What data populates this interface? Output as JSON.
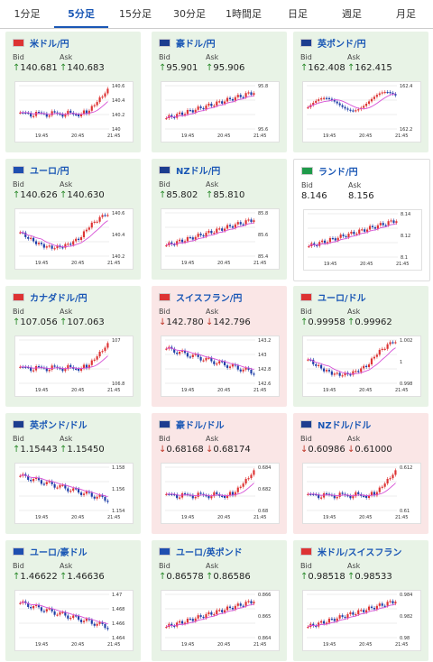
{
  "tabs": [
    {
      "label": "1分足"
    },
    {
      "label": "5分足"
    },
    {
      "label": "15分足"
    },
    {
      "label": "30分足"
    },
    {
      "label": "1時間足"
    },
    {
      "label": "日足"
    },
    {
      "label": "週足"
    },
    {
      "label": "月足"
    }
  ],
  "active_tab": 1,
  "flag_colors": {
    "us": "#d33",
    "au": "#1d3d8f",
    "gb": "#1d3d8f",
    "eu": "#1f4fb0",
    "nz": "#1d3d8f",
    "za": "#1f9a4a",
    "ca": "#d33",
    "ch": "#d33"
  },
  "cards": [
    {
      "pair": "米ドル/円",
      "flag": "us",
      "trend": "up",
      "bid": "140.681",
      "ask": "140.683",
      "arrow": "↑",
      "yticks": [
        "140.6",
        "140.4",
        "140.2",
        "140"
      ],
      "xticks": [
        "19:45",
        "20:45",
        "21:45"
      ],
      "shape": "flat_up"
    },
    {
      "pair": "豪ドル/円",
      "flag": "au",
      "trend": "up",
      "bid": "95.901",
      "ask": "95.906",
      "arrow": "↑",
      "yticks": [
        "95.8",
        "95.6"
      ],
      "xticks": [
        "19:45",
        "20:45",
        "21:45"
      ],
      "shape": "rise"
    },
    {
      "pair": "英ポンド/円",
      "flag": "gb",
      "trend": "up",
      "bid": "162.408",
      "ask": "162.415",
      "arrow": "↑",
      "yticks": [
        "162.4",
        "162.2"
      ],
      "xticks": [
        "19:45",
        "20:45",
        "21:45"
      ],
      "shape": "wave_up"
    },
    {
      "pair": "ユーロ/円",
      "flag": "eu",
      "trend": "up",
      "bid": "140.626",
      "ask": "140.630",
      "arrow": "↑",
      "yticks": [
        "140.6",
        "140.4",
        "140.2"
      ],
      "xticks": [
        "19:45",
        "20:45",
        "21:45"
      ],
      "shape": "dip_rise"
    },
    {
      "pair": "NZドル/円",
      "flag": "nz",
      "trend": "up",
      "bid": "85.802",
      "ask": "85.810",
      "arrow": "↑",
      "yticks": [
        "85.8",
        "85.6",
        "85.4"
      ],
      "xticks": [
        "19:45",
        "20:45",
        "21:45"
      ],
      "shape": "rise"
    },
    {
      "pair": "ランド/円",
      "flag": "za",
      "trend": "flat",
      "bid": "8.146",
      "ask": "8.156",
      "arrow": "",
      "yticks": [
        "8.14",
        "8.12",
        "8.1"
      ],
      "xticks": [
        "19:45",
        "20:45",
        "21:45"
      ],
      "shape": "rise"
    },
    {
      "pair": "カナダドル/円",
      "flag": "ca",
      "trend": "up",
      "bid": "107.056",
      "ask": "107.063",
      "arrow": "↑",
      "yticks": [
        "107",
        "106.8"
      ],
      "xticks": [
        "19:45",
        "20:45",
        "21:45"
      ],
      "shape": "flat_up"
    },
    {
      "pair": "スイスフラン/円",
      "flag": "ch",
      "trend": "down",
      "bid": "142.780",
      "ask": "142.796",
      "arrow": "↓",
      "yticks": [
        "143.2",
        "143",
        "142.8",
        "142.6"
      ],
      "xticks": [
        "19:45",
        "20:45",
        "21:45"
      ],
      "shape": "fall"
    },
    {
      "pair": "ユーロ/ドル",
      "flag": "us",
      "trend": "up",
      "bid": "0.99958",
      "ask": "0.99962",
      "arrow": "↑",
      "yticks": [
        "1.002",
        "1",
        "0.998"
      ],
      "xticks": [
        "19:45",
        "20:45",
        "21:45"
      ],
      "shape": "dip_rise"
    },
    {
      "pair": "英ポンド/ドル",
      "flag": "gb",
      "trend": "up",
      "bid": "1.15443",
      "ask": "1.15450",
      "arrow": "↑",
      "yticks": [
        "1.158",
        "1.156",
        "1.154"
      ],
      "xticks": [
        "19:45",
        "20:45",
        "21:45"
      ],
      "shape": "fall"
    },
    {
      "pair": "豪ドル/ドル",
      "flag": "au",
      "trend": "down",
      "bid": "0.68168",
      "ask": "0.68174",
      "arrow": "↓",
      "yticks": [
        "0.684",
        "0.682",
        "0.68"
      ],
      "xticks": [
        "19:45",
        "20:45",
        "21:45"
      ],
      "shape": "flat_up"
    },
    {
      "pair": "NZドル/ドル",
      "flag": "nz",
      "trend": "down",
      "bid": "0.60986",
      "ask": "0.61000",
      "arrow": "↓",
      "yticks": [
        "0.612",
        "0.61"
      ],
      "xticks": [
        "19:45",
        "20:45",
        "21:45"
      ],
      "shape": "flat_up"
    },
    {
      "pair": "ユーロ/豪ドル",
      "flag": "eu",
      "trend": "up",
      "bid": "1.46622",
      "ask": "1.46636",
      "arrow": "↑",
      "yticks": [
        "1.47",
        "1.468",
        "1.466",
        "1.464"
      ],
      "xticks": [
        "19:45",
        "20:45",
        "21:45"
      ],
      "shape": "fall"
    },
    {
      "pair": "ユーロ/英ポンド",
      "flag": "eu",
      "trend": "up",
      "bid": "0.86578",
      "ask": "0.86586",
      "arrow": "↑",
      "yticks": [
        "0.866",
        "0.865",
        "0.864"
      ],
      "xticks": [
        "19:45",
        "20:45",
        "21:45"
      ],
      "shape": "rise"
    },
    {
      "pair": "米ドル/スイスフラン",
      "flag": "us",
      "trend": "up",
      "bid": "0.98518",
      "ask": "0.98533",
      "arrow": "↑",
      "yticks": [
        "0.984",
        "0.982",
        "0.98"
      ],
      "xticks": [
        "19:45",
        "20:45",
        "21:45"
      ],
      "shape": "rise"
    }
  ],
  "labels": {
    "bid": "Bid",
    "ask": "Ask"
  }
}
